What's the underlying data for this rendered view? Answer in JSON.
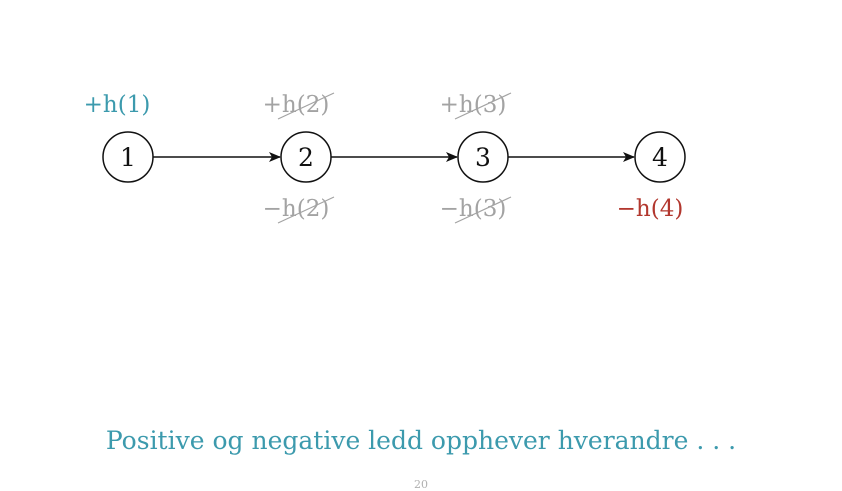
{
  "diagram": {
    "nodes": [
      {
        "label": "1",
        "top_term": "+h(1)",
        "top_style": "active",
        "bottom_term": "",
        "bottom_style": ""
      },
      {
        "label": "2",
        "top_term": "+h(2)",
        "top_style": "cancelled",
        "bottom_term": "−h(2)",
        "bottom_style": "cancelled"
      },
      {
        "label": "3",
        "top_term": "+h(3)",
        "top_style": "cancelled",
        "bottom_term": "−h(3)",
        "bottom_style": "cancelled"
      },
      {
        "label": "4",
        "top_term": "",
        "top_style": "",
        "bottom_term": "−h(4)",
        "bottom_style": "active-negative"
      }
    ],
    "edges": [
      {
        "from": "1",
        "to": "2"
      },
      {
        "from": "2",
        "to": "3"
      },
      {
        "from": "3",
        "to": "4"
      }
    ],
    "colors": {
      "positive": "#3c9aad",
      "negative": "#b2372e",
      "cancelled": "#a3a3a3",
      "ink": "#111111"
    }
  },
  "caption": "Positive og negative ledd opphever hverandre . . .",
  "page_number": "20"
}
